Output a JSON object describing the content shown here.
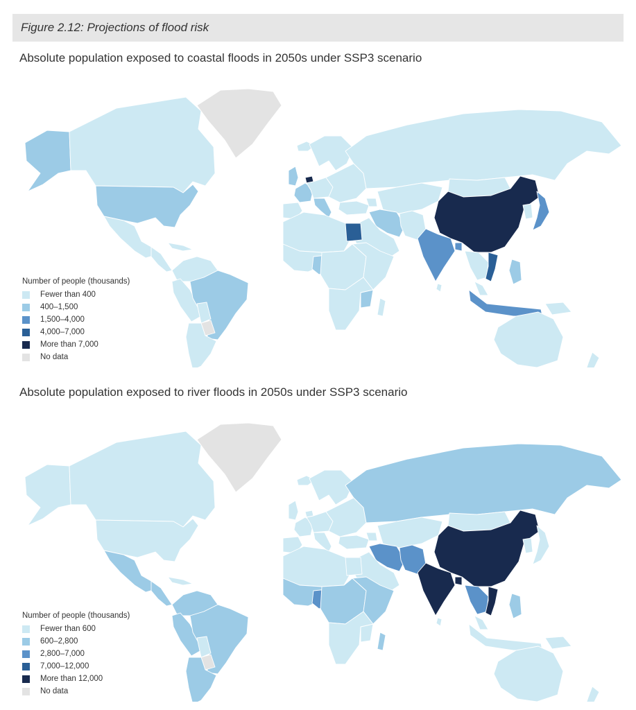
{
  "figure": {
    "title": "Figure 2.12: Projections of flood risk"
  },
  "colors": {
    "c1": "#cde9f3",
    "c2": "#9ccbe6",
    "c3": "#5b92c9",
    "c4": "#2a5f96",
    "c5": "#182a4e",
    "nodata": "#e3e3e3",
    "border": "#ffffff"
  },
  "panels": [
    {
      "title": "Absolute population exposed to coastal floods in 2050s under SSP3 scenario",
      "legend": {
        "title": "Number of people (thousands)",
        "items": [
          {
            "label": "Fewer than 400",
            "class": "c1"
          },
          {
            "label": "400–1,500",
            "class": "c2"
          },
          {
            "label": "1,500–4,000",
            "class": "c3"
          },
          {
            "label": "4,000–7,000",
            "class": "c4"
          },
          {
            "label": "More than 7,000",
            "class": "c5"
          },
          {
            "label": "No data",
            "class": "nodata"
          }
        ]
      },
      "regions": {
        "canada": "c1",
        "alaska": "c2",
        "greenland": "nodata",
        "usa": "c2",
        "mexico": "c1",
        "central_america": "c1",
        "caribbean": "c1",
        "colombia_venezuela": "c1",
        "peru_ecuador": "c1",
        "brazil": "c2",
        "bolivia": "c1",
        "paraguay": "nodata",
        "argentina_chile": "c1",
        "uk": "c2",
        "iceland": "c1",
        "france": "c2",
        "iberia": "c1",
        "netherlands": "c5",
        "germany_central": "c1",
        "italy": "c2",
        "scandinavia": "c1",
        "eastern_europe": "c1",
        "russia": "c1",
        "turkey": "c1",
        "caucasus": "c1",
        "north_africa": "c1",
        "egypt": "c4",
        "west_africa": "c1",
        "nigeria": "c2",
        "central_africa": "c1",
        "east_africa": "c1",
        "mozambique": "c2",
        "southern_africa": "c1",
        "madagascar": "c1",
        "arabia": "c1",
        "iraq_iran": "c2",
        "central_asia": "c1",
        "afghanistan_pakistan": "c1",
        "india": "c3",
        "bangladesh": "c3",
        "china": "c5",
        "mongolia": "c1",
        "korea": "c1",
        "japan": "c3",
        "indochina": "c1",
        "vietnam": "c4",
        "malaysia": "c1",
        "indonesia": "c3",
        "philippines": "c2",
        "png": "c1",
        "australia": "c1",
        "new_zealand": "c1",
        "sri_lanka": "c1"
      }
    },
    {
      "title": "Absolute population exposed to river floods in 2050s under SSP3 scenario",
      "legend": {
        "title": "Number of people (thousands)",
        "items": [
          {
            "label": "Fewer than 600",
            "class": "c1"
          },
          {
            "label": "600–2,800",
            "class": "c2"
          },
          {
            "label": "2,800–7,000",
            "class": "c3"
          },
          {
            "label": "7,000–12,000",
            "class": "c4"
          },
          {
            "label": "More than 12,000",
            "class": "c5"
          },
          {
            "label": "No data",
            "class": "nodata"
          }
        ]
      },
      "regions": {
        "canada": "c1",
        "alaska": "c1",
        "greenland": "nodata",
        "usa": "c1",
        "mexico": "c2",
        "central_america": "c2",
        "caribbean": "c1",
        "colombia_venezuela": "c2",
        "peru_ecuador": "c2",
        "brazil": "c2",
        "bolivia": "c1",
        "paraguay": "nodata",
        "argentina_chile": "c2",
        "uk": "c1",
        "iceland": "c1",
        "france": "c1",
        "iberia": "c1",
        "netherlands": "c1",
        "germany_central": "c1",
        "italy": "c1",
        "scandinavia": "c1",
        "eastern_europe": "c1",
        "russia": "c2",
        "turkey": "c1",
        "caucasus": "c1",
        "north_africa": "c1",
        "egypt": "c1",
        "west_africa": "c2",
        "nigeria": "c3",
        "central_africa": "c2",
        "east_africa": "c2",
        "mozambique": "c1",
        "southern_africa": "c1",
        "madagascar": "c2",
        "arabia": "c1",
        "iraq_iran": "c3",
        "central_asia": "c1",
        "afghanistan_pakistan": "c3",
        "india": "c5",
        "bangladesh": "c5",
        "china": "c5",
        "mongolia": "c1",
        "korea": "c1",
        "japan": "c1",
        "indochina": "c3",
        "vietnam": "c5",
        "malaysia": "c1",
        "indonesia": "c1",
        "philippines": "c2",
        "png": "c1",
        "australia": "c1",
        "new_zealand": "c1",
        "sri_lanka": "c1"
      }
    }
  ]
}
